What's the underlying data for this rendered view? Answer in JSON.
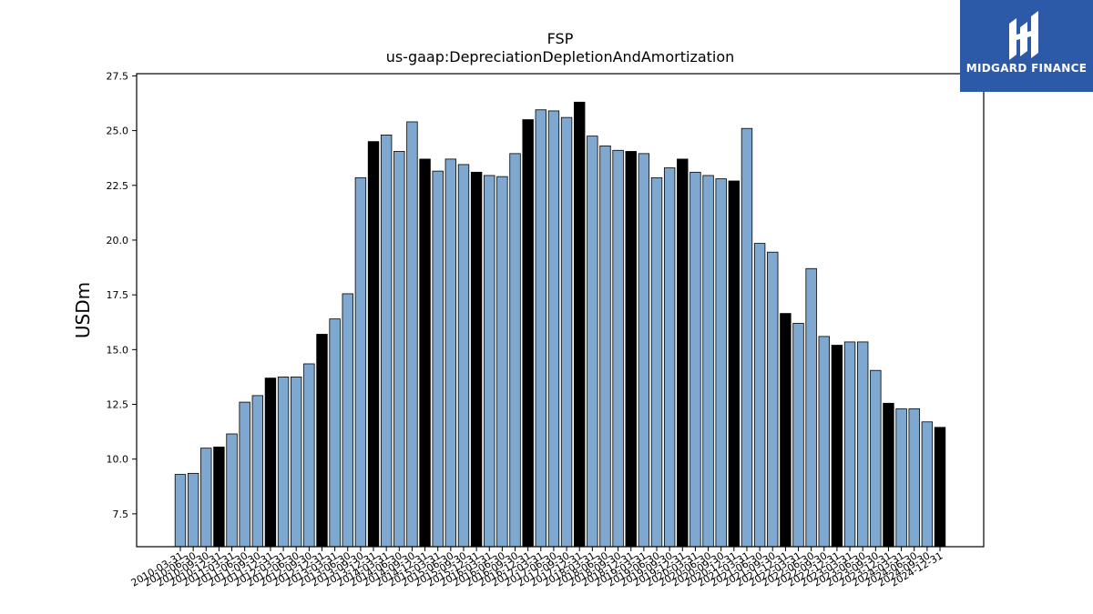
{
  "brand": {
    "name": "MIDGARD FINANCE",
    "logo_icon": "midgard-logo-icon",
    "background_color": "#2d5aa8"
  },
  "colors": {
    "bar_default": "#7ea8cf",
    "bar_highlight": "#000000",
    "bar_edge": "#000000"
  },
  "chart_data": {
    "type": "bar",
    "title": "FSP",
    "subtitle": "us-gaap:DepreciationDepletionAndAmortization",
    "xlabel": "",
    "ylabel": "USDm",
    "ylim": [
      6.0,
      27.6
    ],
    "yticks": [
      "7.5",
      "10.0",
      "12.5",
      "15.0",
      "17.5",
      "20.0",
      "22.5",
      "25.0",
      "27.5"
    ],
    "grid": false,
    "categories": [
      "2010-03-31",
      "2010-06-30",
      "2010-09-30",
      "2010-12-31",
      "2011-03-31",
      "2011-06-30",
      "2011-09-30",
      "2011-12-31",
      "2012-03-31",
      "2012-06-30",
      "2012-09-30",
      "2012-12-31",
      "2013-03-31",
      "2013-06-30",
      "2013-09-30",
      "2013-12-31",
      "2014-03-31",
      "2014-06-30",
      "2014-09-30",
      "2014-12-31",
      "2015-03-31",
      "2015-06-30",
      "2015-09-30",
      "2015-12-31",
      "2016-03-31",
      "2016-06-30",
      "2016-09-30",
      "2016-12-31",
      "2017-03-31",
      "2017-06-30",
      "2017-09-30",
      "2017-12-31",
      "2018-03-31",
      "2018-06-30",
      "2018-09-30",
      "2018-12-31",
      "2019-03-31",
      "2019-06-30",
      "2019-09-30",
      "2019-12-31",
      "2020-03-31",
      "2020-06-30",
      "2020-09-30",
      "2020-12-31",
      "2021-03-31",
      "2021-06-30",
      "2021-09-30",
      "2021-12-31",
      "2022-03-31",
      "2022-06-30",
      "2022-09-30",
      "2022-12-31",
      "2023-03-31",
      "2023-06-30",
      "2023-09-30",
      "2023-12-31",
      "2024-03-31",
      "2024-06-30",
      "2024-09-30",
      "2024-12-31"
    ],
    "values": [
      9.3,
      9.35,
      10.5,
      10.55,
      11.15,
      12.6,
      12.9,
      13.7,
      13.75,
      13.75,
      14.35,
      15.7,
      16.4,
      17.55,
      22.85,
      24.5,
      24.8,
      24.05,
      25.4,
      23.7,
      23.15,
      23.7,
      23.45,
      23.1,
      22.95,
      22.9,
      23.95,
      25.5,
      25.95,
      25.9,
      25.6,
      26.3,
      24.75,
      24.3,
      24.1,
      24.05,
      23.95,
      22.85,
      23.3,
      23.7,
      23.1,
      22.95,
      22.8,
      22.7,
      25.1,
      19.85,
      19.45,
      16.65,
      16.2,
      18.7,
      15.6,
      15.2,
      15.35,
      15.35,
      14.05,
      12.55,
      12.3,
      12.3,
      11.7,
      11.45
    ],
    "highlight": [
      false,
      false,
      false,
      true,
      false,
      false,
      false,
      true,
      false,
      false,
      false,
      true,
      false,
      false,
      false,
      true,
      false,
      false,
      false,
      true,
      false,
      false,
      false,
      true,
      false,
      false,
      false,
      true,
      false,
      false,
      false,
      true,
      false,
      false,
      false,
      true,
      false,
      false,
      false,
      true,
      false,
      false,
      false,
      true,
      false,
      false,
      false,
      true,
      false,
      false,
      false,
      true,
      false,
      false,
      false,
      true,
      false,
      false,
      false,
      true
    ]
  }
}
